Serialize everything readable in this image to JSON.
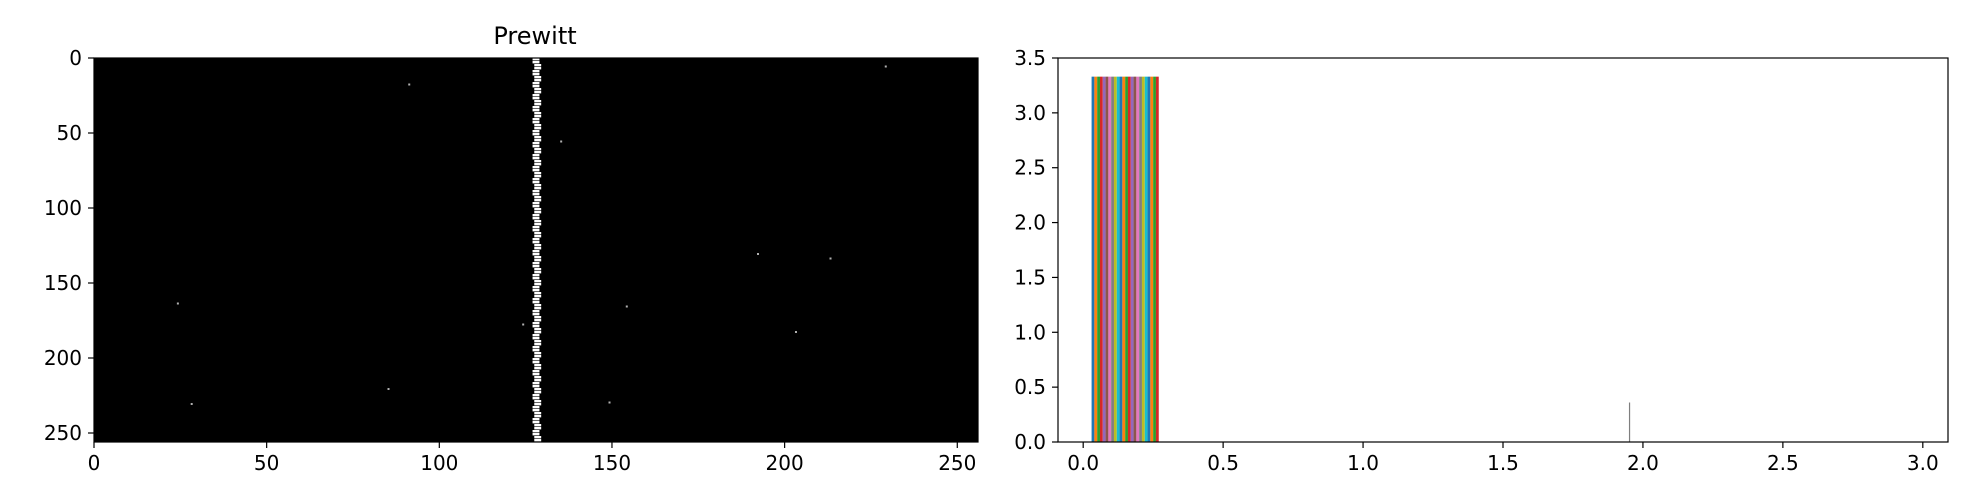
{
  "chart_data": [
    {
      "type": "heatmap",
      "title": "Prewitt",
      "xlim": [
        0,
        256
      ],
      "ylim": [
        256,
        0
      ],
      "xticks": [
        0,
        50,
        100,
        150,
        200,
        250
      ],
      "yticks": [
        0,
        50,
        100,
        150,
        200,
        250
      ],
      "xtick_labels": [
        "0",
        "50",
        "100",
        "150",
        "200",
        "250"
      ],
      "ytick_labels": [
        "0",
        "50",
        "100",
        "150",
        "200",
        "250"
      ],
      "background_color": "#000000",
      "edge_color": "#ffffff",
      "edge_column_x": 128,
      "edge_width": 2,
      "speckles": [
        [
          91,
          17
        ],
        [
          229,
          5
        ],
        [
          135,
          55
        ],
        [
          192,
          130
        ],
        [
          213,
          133
        ],
        [
          24,
          163
        ],
        [
          154,
          165
        ],
        [
          124,
          177
        ],
        [
          203,
          182
        ],
        [
          85,
          220
        ],
        [
          28,
          230
        ],
        [
          149,
          229
        ]
      ]
    },
    {
      "type": "bar",
      "title": "",
      "xlim": [
        -0.09,
        3.09
      ],
      "ylim": [
        0,
        3.5
      ],
      "xticks": [
        0,
        0.5,
        1,
        1.5,
        2,
        2.5,
        3
      ],
      "yticks": [
        0,
        0.5,
        1,
        1.5,
        2,
        2.5,
        3,
        3.5
      ],
      "xtick_labels": [
        "0.0",
        "0.5",
        "1.0",
        "1.5",
        "2.0",
        "2.5",
        "3.0"
      ],
      "ytick_labels": [
        "0.0",
        "0.5",
        "1.0",
        "1.5",
        "2.0",
        "2.5",
        "3.0",
        "3.5"
      ],
      "bar_cluster_start": 0.03,
      "bar_cluster_end": 0.27,
      "bar_count": 24,
      "bar_value": 3.33,
      "bar_colors": [
        "#1f77b4",
        "#ff7f0e",
        "#2ca02c",
        "#d62728",
        "#9467bd",
        "#8c564b",
        "#e377c2",
        "#7f7f7f",
        "#bcbd22",
        "#17becf"
      ],
      "outlier": {
        "x": 1.95,
        "value": 0.36,
        "color": "#7f7f7f"
      }
    }
  ]
}
